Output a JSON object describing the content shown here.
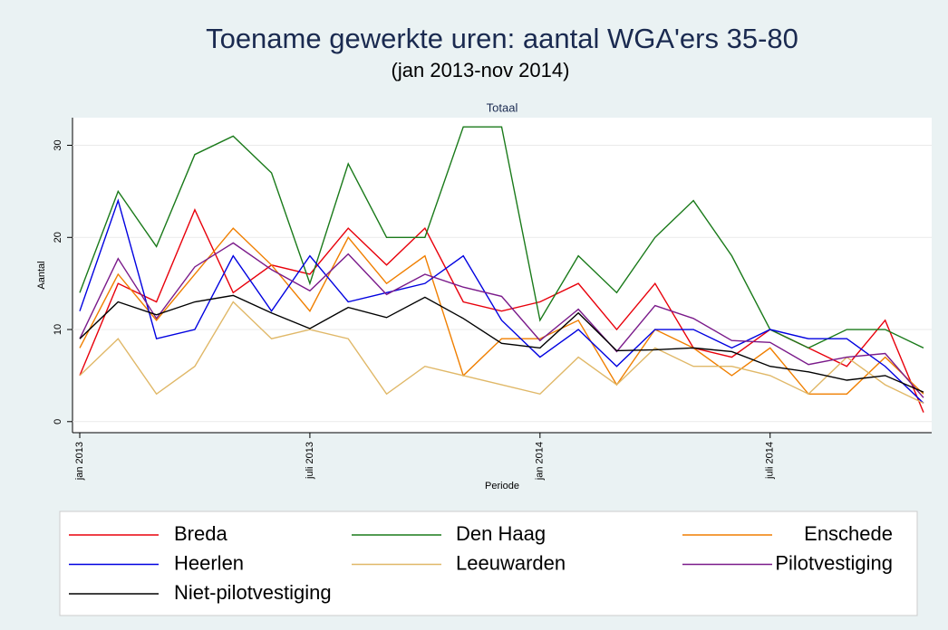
{
  "chart_data": {
    "type": "line",
    "title": "Toename gewerkte uren: aantal WGA'ers 35-80",
    "subtitle": "(jan 2013-nov 2014)",
    "panel_title": "Totaal",
    "x_label": "Periode",
    "y_label": "Aantal",
    "categories": [
      "jan 2013",
      null,
      null,
      null,
      null,
      null,
      "juli 2013",
      null,
      null,
      null,
      null,
      null,
      "jan 2014",
      null,
      null,
      null,
      null,
      null,
      "juli 2014",
      null,
      null,
      null,
      null
    ],
    "ylim": [
      -1.2,
      33
    ],
    "yticks": [
      0,
      10,
      20,
      30
    ],
    "grid": true,
    "series": [
      {
        "name": "Breda",
        "color": "#e8000b",
        "values": [
          5,
          15,
          13,
          23,
          14,
          17,
          16,
          21,
          17,
          21,
          13,
          12,
          13,
          15,
          10,
          15,
          8,
          7,
          10,
          8,
          6,
          11,
          1
        ]
      },
      {
        "name": "Den Haag",
        "color": "#1a7a1a",
        "values": [
          14,
          25,
          19,
          29,
          31,
          27,
          15,
          28,
          20,
          20,
          32,
          32,
          11,
          18,
          14,
          20,
          24,
          18,
          10,
          8,
          10,
          10,
          8
        ]
      },
      {
        "name": "Enschede",
        "color": "#f07f00",
        "values": [
          8,
          16,
          11,
          16,
          21,
          17,
          12,
          20,
          15,
          18,
          5,
          9,
          9,
          11,
          4,
          10,
          8,
          5,
          8,
          3,
          3,
          7,
          3
        ]
      },
      {
        "name": "Heerlen",
        "color": "#0000e0",
        "values": [
          12,
          24,
          9,
          10,
          18,
          12,
          18,
          13,
          14,
          15,
          18,
          11,
          7,
          10,
          6,
          10,
          10,
          8,
          10,
          9,
          9,
          6,
          2
        ]
      },
      {
        "name": "Leeuwarden",
        "color": "#e0b868",
        "values": [
          5,
          9,
          3,
          6,
          13,
          9,
          10,
          9,
          3,
          6,
          5,
          4,
          3,
          7,
          4,
          8,
          6,
          6,
          5,
          3,
          7,
          4,
          2
        ]
      },
      {
        "name": "Pilotvestiging",
        "color": "#7a1a8a",
        "values": [
          9,
          17.7,
          11.2,
          16.8,
          19.4,
          16.5,
          14.2,
          18.2,
          13.8,
          16,
          14.6,
          13.6,
          8.8,
          12.2,
          7.6,
          12.6,
          11.2,
          8.8,
          8.6,
          6.2,
          7,
          7.4,
          2.6
        ]
      },
      {
        "name": "Niet-pilotvestiging",
        "color": "#000000",
        "values": [
          9,
          13,
          11.6,
          13,
          13.7,
          11.8,
          10.1,
          12.4,
          11.3,
          13.5,
          11.2,
          8.5,
          8,
          11.8,
          7.7,
          7.8,
          8,
          7.6,
          6,
          5.4,
          4.5,
          5,
          3.2
        ]
      }
    ]
  }
}
